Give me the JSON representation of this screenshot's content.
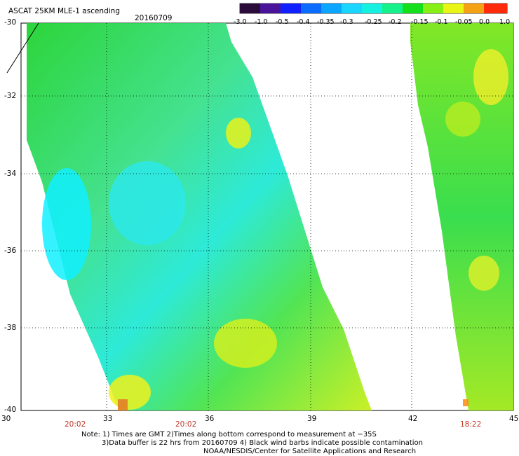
{
  "header": {
    "title": "ASCAT 25KM MLE-1 ascending",
    "date": "20160709"
  },
  "colorbar": {
    "labels": [
      "-3.0",
      "-1.0",
      "-0.5",
      "-0.4",
      "-0.35",
      "-0.3",
      "-0.25",
      "-0.2",
      "-0.15",
      "-0.1",
      "-0.05",
      "0.0",
      "1.0"
    ]
  },
  "axes": {
    "y_labels": [
      "-30",
      "-32",
      "-34",
      "-36",
      "-38",
      "-40"
    ],
    "x_labels": [
      "30",
      "33",
      "36",
      "39",
      "42",
      "45"
    ],
    "times": [
      "20:02",
      "20:02",
      "18:22"
    ]
  },
  "notes": {
    "line1": "Note: 1) Times are GMT 2)Times along bottom correspond to measurement at −35S",
    "line2": "3)Data buffer is 22 hrs from 20160709 4) Black wind barbs indicate possible contamination",
    "line3": "NOAA/NESDIS/Center for Satellite Applications and Research"
  }
}
